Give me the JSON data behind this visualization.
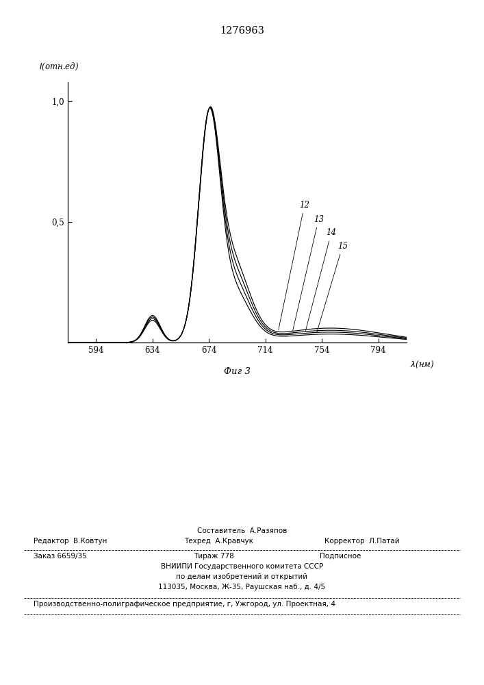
{
  "title": "1276963",
  "ylabel": "I(отн.ед)",
  "xlabel": "λ(нм)",
  "fig_label": "Фиг 3",
  "x_min": 574,
  "x_max": 814,
  "y_min": 0.0,
  "y_max": 1.08,
  "x_ticks": [
    594,
    634,
    674,
    714,
    754,
    794
  ],
  "y_ticks": [
    0.5,
    1.0
  ],
  "y_tick_labels": [
    "0,5",
    "1,0"
  ],
  "curve_labels": [
    "12",
    "13",
    "14",
    "15"
  ],
  "line_color": "#000000",
  "background_color": "#ffffff",
  "header_text": "1276963",
  "footer_col1_line1": "Составитель  А.Разяпов",
  "footer_editor": "Редактор  В.Ковтун",
  "footer_techred": "Техред  А.Кравчук",
  "footer_corrector": "Корректор  Л.Патай",
  "footer_zakaz": "Заказ 6659/35",
  "footer_tirazh": "Тираж 778",
  "footer_podpisnoe": "Подписное",
  "footer_vniip1": "ВНИИПИ Государственного комитета СССР",
  "footer_vniip2": "по делам изобретений и открытий",
  "footer_vniip3": "113035, Москва, Ж-35, Раушская наб., д. 4/5",
  "footer_proizv": "Производственно-полиграфическое предприятие, г, Ужгород, ул. Проектная, 4"
}
